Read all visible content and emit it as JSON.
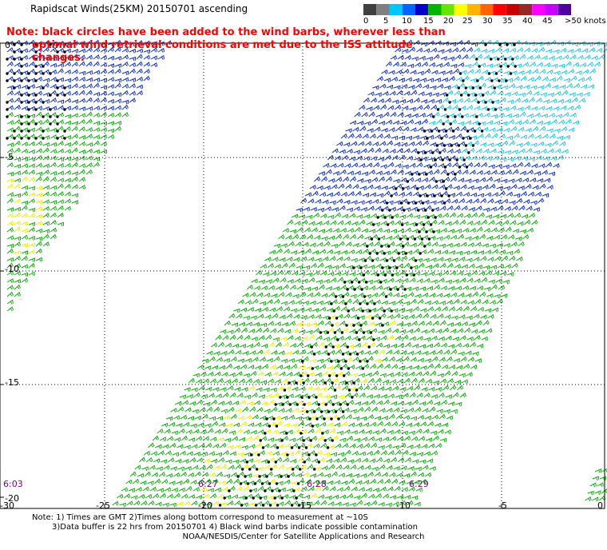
{
  "title": "Rapidscat Winds(25KM) 20150701 ascending",
  "note": {
    "line1": "Note: black circles have been added to the wind barbs, wherever less than",
    "line2": "optimal wind retrieval conditions are met due to the ISS attitude changes."
  },
  "legend": {
    "labels": [
      "0",
      "5",
      "10",
      "15",
      "20",
      "25",
      "30",
      "35",
      "40",
      "45",
      ">50 knots"
    ],
    "colors": [
      "#404040",
      "#808080",
      "#00c8ff",
      "#0064ff",
      "#0000c8",
      "#00b400",
      "#64e600",
      "#ffff00",
      "#ffb400",
      "#ff6400",
      "#ff0000",
      "#c80000",
      "#962828",
      "#ff00ff",
      "#c800ff",
      "#5000a0"
    ]
  },
  "axes": {
    "x_ticks": [
      "-30",
      "-25",
      "-20",
      "-15",
      "-10",
      "-5",
      "0"
    ],
    "y_ticks": [
      "0",
      "-5",
      "-10",
      "-15",
      "-20"
    ]
  },
  "time_labels": [
    "6:03",
    "6:27",
    "6:28",
    "6:29"
  ],
  "footer": {
    "line1": "Note: 1) Times are GMT 2)Times along bottom correspond to measurement at ~10S",
    "line2": "3)Data buffer is 22 hrs from 20150701 4) Black wind barbs indicate possible contamination",
    "credit": "NOAA/NESDIS/Center for Satellite Applications and Research"
  },
  "colors": {
    "blue": "#1030d0",
    "green": "#10b010",
    "yellow": "#f0f000",
    "cyan": "#20c8e8",
    "flag": "#000000",
    "note": "#ff0000",
    "time": "#800080"
  }
}
